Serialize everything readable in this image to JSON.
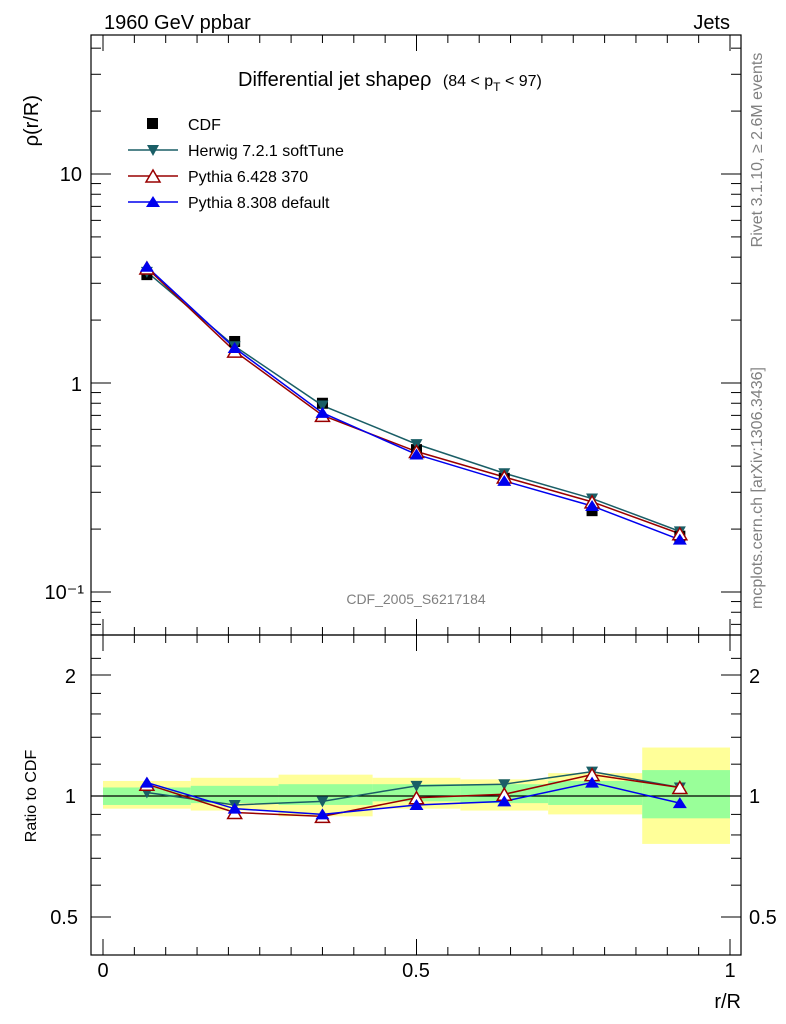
{
  "header": {
    "left": "1960 GeV ppbar",
    "right": "Jets"
  },
  "side_texts": {
    "rivet": "Rivet 3.1.10, ≥ 2.6M events",
    "mcplots": "mcplots.cern.ch [arXiv:1306.3436]"
  },
  "legend": {
    "cdf": "CDF",
    "herwig": "Herwig 7.2.1 softTune",
    "pythia6": "Pythia 6.428 370",
    "pythia8": "Pythia 8.308 default"
  },
  "colors": {
    "cdf": "#000000",
    "herwig": "#1a5e66",
    "pythia6": "#990000",
    "pythia8": "#0000ee",
    "band_inner": "#99ff99",
    "band_outer": "#ffff99"
  },
  "chart_data": [
    {
      "type": "line",
      "title": "Differential jet shapeρ",
      "title_suffix": "(84 < p",
      "title_sub": "T",
      "title_end": " < 97)",
      "ylabel": "ρ(r/R)",
      "yscale": "log",
      "ylim": [
        0.065,
        45
      ],
      "xlim": [
        -0.02,
        1.02
      ],
      "ytick_labels": [
        "10",
        "1",
        "10⁻¹"
      ],
      "watermark": "CDF_2005_S6217184",
      "x": [
        0.07,
        0.21,
        0.35,
        0.5,
        0.64,
        0.78,
        0.92
      ],
      "series": [
        {
          "name": "CDF",
          "values": [
            3.3,
            1.58,
            0.8,
            0.48,
            0.35,
            0.245,
            0.185
          ]
        },
        {
          "name": "Herwig 7.2.1 softTune",
          "values": [
            3.4,
            1.5,
            0.78,
            0.51,
            0.37,
            0.28,
            0.195
          ]
        },
        {
          "name": "Pythia 6.428 370",
          "values": [
            3.55,
            1.42,
            0.7,
            0.47,
            0.355,
            0.27,
            0.19
          ]
        },
        {
          "name": "Pythia 8.308 default",
          "values": [
            3.6,
            1.47,
            0.72,
            0.455,
            0.34,
            0.258,
            0.178
          ]
        }
      ]
    },
    {
      "type": "line",
      "ylabel": "Ratio to CDF",
      "xlabel": "r/R",
      "ylim": [
        0.4,
        2.3
      ],
      "xlim": [
        -0.02,
        1.02
      ],
      "x": [
        0.07,
        0.21,
        0.35,
        0.5,
        0.64,
        0.78,
        0.92
      ],
      "xtick_labels": [
        "0",
        "0.5",
        "1"
      ],
      "ytick_labels": [
        "2",
        "1",
        "0.5"
      ],
      "bands": [
        {
          "x0": 0.0,
          "x1": 0.14,
          "inner": [
            0.95,
            1.05
          ],
          "outer": [
            0.93,
            1.09
          ]
        },
        {
          "x0": 0.14,
          "x1": 0.28,
          "inner": [
            0.96,
            1.06
          ],
          "outer": [
            0.92,
            1.11
          ]
        },
        {
          "x0": 0.28,
          "x1": 0.43,
          "inner": [
            0.95,
            1.07
          ],
          "outer": [
            0.89,
            1.13
          ]
        },
        {
          "x0": 0.43,
          "x1": 0.57,
          "inner": [
            0.97,
            1.07
          ],
          "outer": [
            0.93,
            1.11
          ]
        },
        {
          "x0": 0.57,
          "x1": 0.71,
          "inner": [
            0.96,
            1.07
          ],
          "outer": [
            0.92,
            1.1
          ]
        },
        {
          "x0": 0.71,
          "x1": 0.86,
          "inner": [
            0.95,
            1.09
          ],
          "outer": [
            0.9,
            1.14
          ]
        },
        {
          "x0": 0.86,
          "x1": 1.0,
          "inner": [
            0.88,
            1.16
          ],
          "outer": [
            0.76,
            1.32
          ]
        }
      ],
      "series": [
        {
          "name": "Herwig 7.2.1 softTune",
          "values": [
            1.02,
            0.95,
            0.97,
            1.06,
            1.07,
            1.15,
            1.05
          ]
        },
        {
          "name": "Pythia 6.428 370",
          "values": [
            1.07,
            0.91,
            0.89,
            0.99,
            1.01,
            1.13,
            1.05
          ]
        },
        {
          "name": "Pythia 8.308 default",
          "values": [
            1.08,
            0.93,
            0.9,
            0.95,
            0.97,
            1.08,
            0.96
          ]
        }
      ]
    }
  ]
}
